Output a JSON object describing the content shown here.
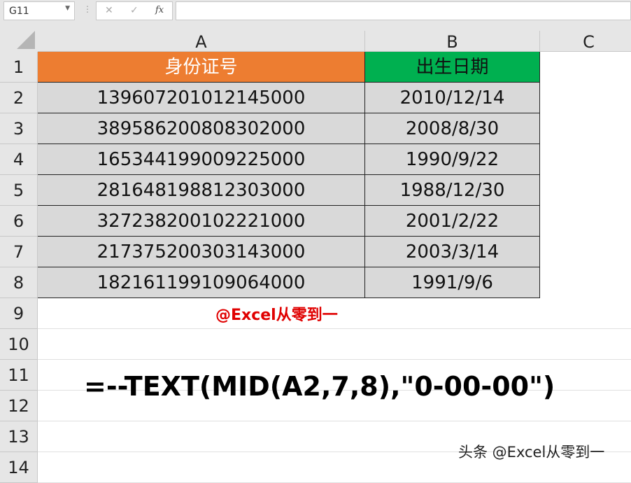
{
  "formula_bar": {
    "name_box": "G11",
    "cancel_icon": "✕",
    "enter_icon": "✓",
    "fx_label": "fx",
    "formula": ""
  },
  "columns": [
    "A",
    "B",
    "C"
  ],
  "rows": [
    "1",
    "2",
    "3",
    "4",
    "5",
    "6",
    "7",
    "8",
    "9",
    "10",
    "11",
    "12",
    "13",
    "14"
  ],
  "table": {
    "headers": [
      "身份证号",
      "出生日期"
    ],
    "rows": [
      [
        "139607201012145000",
        "2010/12/14"
      ],
      [
        "389586200808302000",
        "2008/8/30"
      ],
      [
        "165344199009225000",
        "1990/9/22"
      ],
      [
        "281648198812303000",
        "1988/12/30"
      ],
      [
        "327238200102221000",
        "2001/2/22"
      ],
      [
        "217375200303143000",
        "2003/3/14"
      ],
      [
        "182161199109064000",
        "1991/9/6"
      ]
    ]
  },
  "colors": {
    "header_a": "#ed7d31",
    "header_b": "#00b050",
    "watermark": "#e00000"
  },
  "watermark": "@Excel从零到一",
  "formula_text": "=--TEXT(MID(A2,7,8),\"0-00-00\")",
  "footer_watermark": "头条 @Excel从零到一"
}
